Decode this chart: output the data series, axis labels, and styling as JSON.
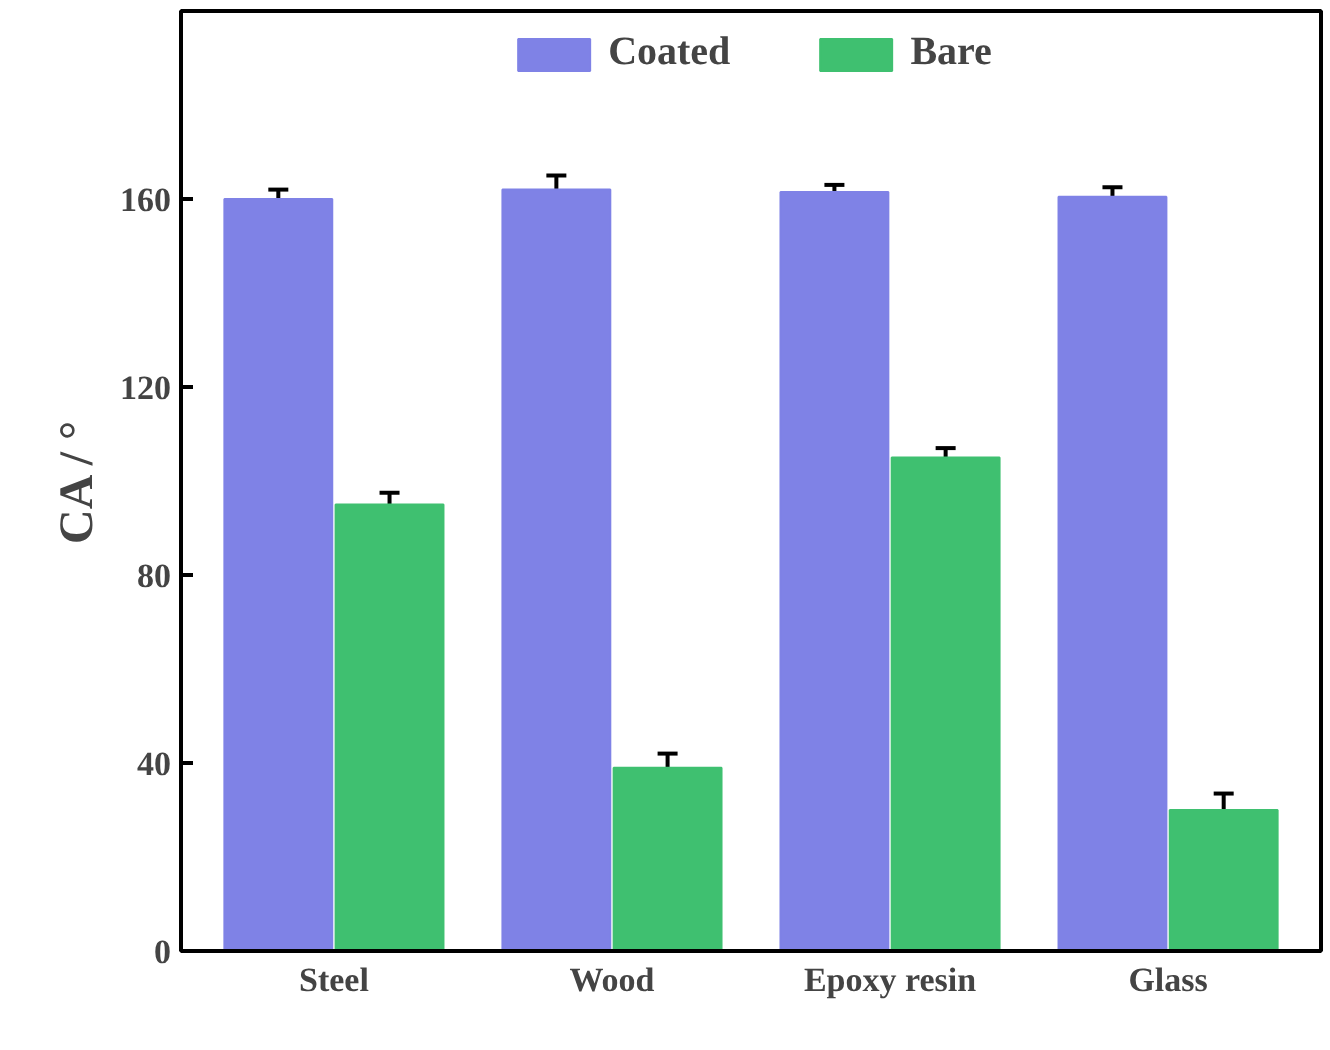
{
  "chart_data": {
    "type": "bar",
    "ylabel": "CA / °",
    "categories": [
      "Steel",
      "Wood",
      "Epoxy resin",
      "Glass"
    ],
    "series": [
      {
        "name": "Coated",
        "color": "#7f82e6",
        "values": [
          160,
          162,
          161.5,
          160.5
        ],
        "errors": [
          2,
          3,
          1.5,
          2
        ]
      },
      {
        "name": "Bare",
        "color": "#3fc070",
        "values": [
          95,
          39,
          105,
          30
        ],
        "errors": [
          2.5,
          3,
          2,
          3.5
        ]
      }
    ],
    "ylim": [
      0,
      200
    ],
    "yticks": [
      0,
      40,
      80,
      120,
      160
    ],
    "grid": false,
    "legend": "top"
  }
}
